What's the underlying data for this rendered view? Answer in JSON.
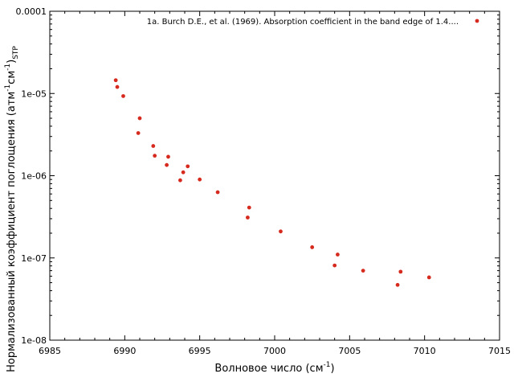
{
  "chart_data": {
    "type": "scatter",
    "title": "",
    "xlabel": "Волновое число (см",
    "xlabel_sup": "-1",
    "xlabel_tail": ")",
    "ylabel_prefix": "Нормализованный коэффициент поглощения (атм",
    "ylabel_sup1": "-1",
    "ylabel_mid": "см",
    "ylabel_sup2": "-1",
    "ylabel_close": ")",
    "ylabel_sub": "STP",
    "xlim": [
      6985,
      7015
    ],
    "ylim": [
      1e-08,
      0.0001
    ],
    "yscale": "log",
    "grid": false,
    "legend_position": "top-right",
    "x_ticks": [
      "6985",
      "6990",
      "6995",
      "7000",
      "7005",
      "7010",
      "7015"
    ],
    "y_ticks": [
      "1e-08",
      "1e-07",
      "1e-06",
      "1e-05",
      "0.0001"
    ],
    "series": [
      {
        "name": "1a. Burch D.E., et al. (1969). Absorption coefficient in the band edge of 1.4....",
        "color": "#d62a1e",
        "points": [
          [
            6989.4,
            1.45e-05
          ],
          [
            6989.5,
            1.2e-05
          ],
          [
            6989.9,
            9.3e-06
          ],
          [
            6990.9,
            3.3e-06
          ],
          [
            6991.0,
            5e-06
          ],
          [
            6991.9,
            2.3e-06
          ],
          [
            6992.0,
            1.75e-06
          ],
          [
            6992.8,
            1.35e-06
          ],
          [
            6992.9,
            1.7e-06
          ],
          [
            6993.7,
            8.8e-07
          ],
          [
            6993.9,
            1.1e-06
          ],
          [
            6994.2,
            1.3e-06
          ],
          [
            6995.0,
            9e-07
          ],
          [
            6996.2,
            6.3e-07
          ],
          [
            6998.2,
            3.1e-07
          ],
          [
            6998.3,
            4.1e-07
          ],
          [
            7000.4,
            2.1e-07
          ],
          [
            7002.5,
            1.35e-07
          ],
          [
            7004.0,
            8.1e-08
          ],
          [
            7004.2,
            1.1e-07
          ],
          [
            7005.9,
            7e-08
          ],
          [
            7008.2,
            4.7e-08
          ],
          [
            7008.4,
            6.8e-08
          ],
          [
            7010.3,
            5.8e-08
          ]
        ]
      }
    ]
  }
}
